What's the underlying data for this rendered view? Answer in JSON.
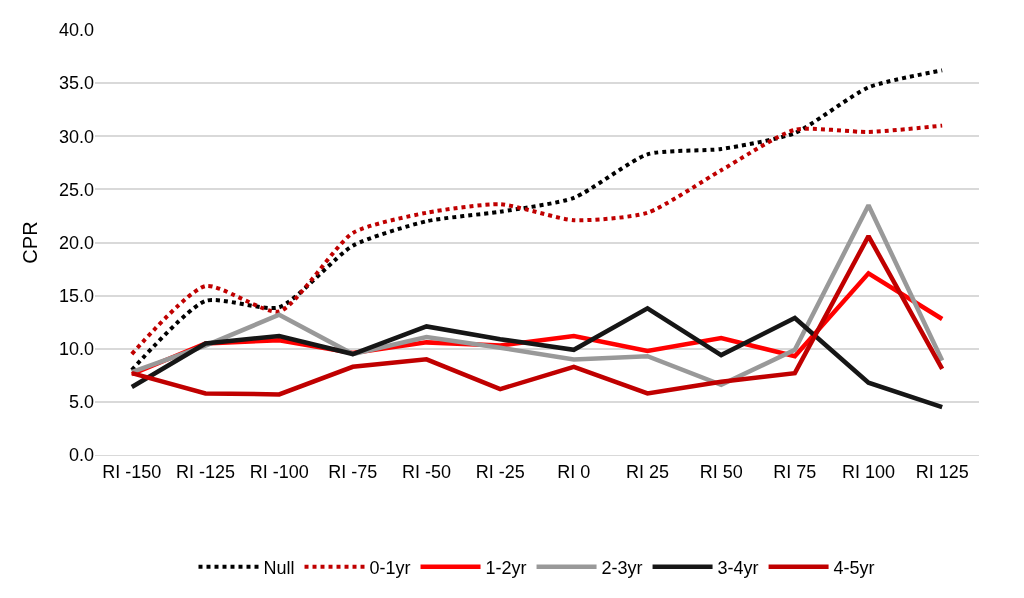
{
  "chart_data": {
    "type": "line",
    "ylabel": "CPR",
    "categories": [
      "RI -150",
      "RI -125",
      "RI -100",
      "RI -75",
      "RI -50",
      "RI -25",
      "RI 0",
      "RI 25",
      "RI 50",
      "RI 75",
      "RI 100",
      "RI 125"
    ],
    "ylim": [
      0,
      40
    ],
    "yticks": [
      {
        "value": 0,
        "label": "0.0"
      },
      {
        "value": 5,
        "label": "5.0"
      },
      {
        "value": 10,
        "label": "10.0"
      },
      {
        "value": 15,
        "label": "15.0"
      },
      {
        "value": 20,
        "label": "20.0"
      },
      {
        "value": 25,
        "label": "25.0"
      },
      {
        "value": 30,
        "label": "30.0"
      },
      {
        "value": 35,
        "label": "35.0"
      },
      {
        "value": 40,
        "label": "40.0"
      }
    ],
    "grid": "y",
    "legend": "bottom",
    "marker": "none",
    "series": [
      {
        "name": "Null",
        "color": "#000000",
        "line_style": "dotted",
        "values": [
          8.0,
          14.5,
          13.9,
          19.7,
          22.0,
          22.9,
          24.2,
          28.3,
          28.8,
          30.3,
          34.6,
          36.2
        ]
      },
      {
        "name": "0-1yr",
        "color": "#c00000",
        "line_style": "dotted",
        "values": [
          9.5,
          15.9,
          13.5,
          20.9,
          22.8,
          23.6,
          22.1,
          22.8,
          26.8,
          30.6,
          30.4,
          31.0
        ]
      },
      {
        "name": "1-2yr",
        "color": "#ff0000",
        "line_style": "solid",
        "values": [
          7.6,
          10.5,
          10.8,
          9.6,
          10.6,
          10.3,
          11.2,
          9.8,
          11.0,
          9.3,
          17.1,
          12.8
        ]
      },
      {
        "name": "2-3yr",
        "color": "#999999",
        "line_style": "solid",
        "values": [
          7.8,
          10.3,
          13.2,
          9.5,
          11.1,
          10.1,
          9.0,
          9.3,
          6.6,
          9.9,
          23.5,
          8.9
        ]
      },
      {
        "name": "3-4yr",
        "color": "#161616",
        "line_style": "solid",
        "values": [
          6.4,
          10.5,
          11.2,
          9.5,
          12.1,
          10.9,
          9.9,
          13.8,
          9.4,
          12.9,
          6.8,
          4.5
        ]
      },
      {
        "name": "4-5yr",
        "color": "#c00000",
        "line_style": "solid",
        "values": [
          7.7,
          5.8,
          5.7,
          8.3,
          9.0,
          6.2,
          8.3,
          5.8,
          6.9,
          7.7,
          20.6,
          8.1
        ]
      }
    ]
  }
}
